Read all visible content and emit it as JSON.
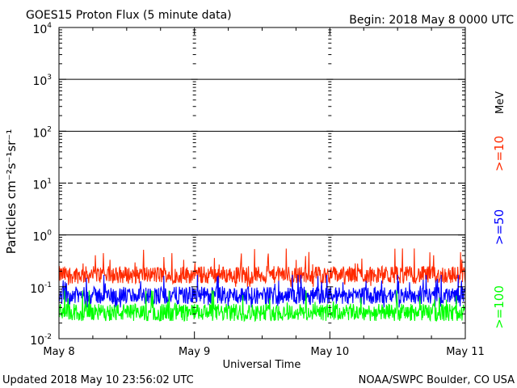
{
  "header": {
    "title": "GOES15 Proton Flux (5 minute data)",
    "begin": "Begin: 2018 May 8 0000 UTC"
  },
  "footer": {
    "updated": "Updated 2018 May 10 23:56:02 UTC",
    "credit": "NOAA/SWPC Boulder, CO USA"
  },
  "chart_data": {
    "type": "line",
    "title": "GOES15 Proton Flux (5 minute data)",
    "xlabel": "Universal Time",
    "ylabel": "Particles cm⁻²s⁻¹sr⁻¹",
    "yscale": "log",
    "ylim": [
      0.01,
      10000
    ],
    "xlim": [
      "2018-05-08",
      "2018-05-11"
    ],
    "x_ticks": [
      "May 8",
      "May 9",
      "May 10",
      "May 11"
    ],
    "y_ticks": [
      {
        "value": 0.01,
        "base": "10",
        "exp": "-2"
      },
      {
        "value": 0.1,
        "base": "10",
        "exp": "-1"
      },
      {
        "value": 1,
        "base": "10",
        "exp": "0"
      },
      {
        "value": 10,
        "base": "10",
        "exp": "1"
      },
      {
        "value": 100,
        "base": "10",
        "exp": "2"
      },
      {
        "value": 1000,
        "base": "10",
        "exp": "3"
      },
      {
        "value": 10000,
        "base": "10",
        "exp": "4"
      }
    ],
    "unit_label": "MeV",
    "threshold_lines": [
      {
        "value": 1000,
        "style": "solid"
      },
      {
        "value": 100,
        "style": "solid"
      },
      {
        "value": 10,
        "style": "dashed"
      },
      {
        "value": 1,
        "style": "solid"
      }
    ],
    "grid": false,
    "series": [
      {
        "name": ">=10",
        "color": "#ff2a00",
        "baseline": 0.17,
        "range": [
          0.1,
          0.55
        ]
      },
      {
        "name": ">=50",
        "color": "#0000ff",
        "baseline": 0.068,
        "range": [
          0.04,
          0.17
        ]
      },
      {
        "name": ">=100",
        "color": "#00ff00",
        "baseline": 0.032,
        "range": [
          0.022,
          0.085
        ]
      }
    ]
  }
}
